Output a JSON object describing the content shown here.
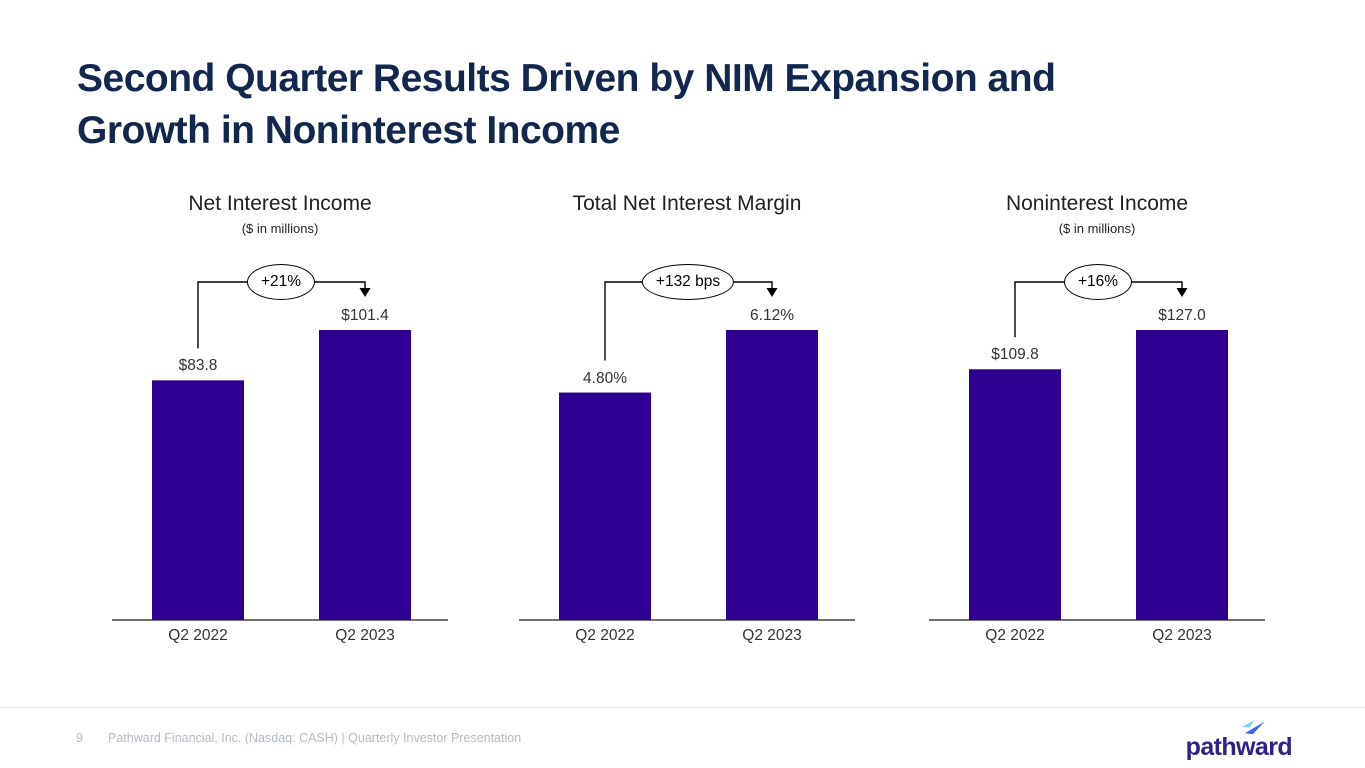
{
  "slide": {
    "title_lines": [
      "Second Quarter Results Driven by NIM Expansion and",
      "Growth in Noninterest Income"
    ]
  },
  "chart_data": [
    {
      "type": "bar",
      "title": "Net Interest Income",
      "subtitle": "($ in millions)",
      "categories": [
        "Q2 2022",
        "Q2 2023"
      ],
      "values": [
        83.8,
        101.4
      ],
      "value_labels": [
        "$83.8",
        "$101.4"
      ],
      "change_badge": "+21%",
      "ylim": [
        0,
        101.4
      ],
      "grid": "off",
      "legend": "none"
    },
    {
      "type": "bar",
      "title": "Total Net Interest Margin",
      "subtitle": "",
      "categories": [
        "Q2 2022",
        "Q2 2023"
      ],
      "values": [
        4.8,
        6.12
      ],
      "value_labels": [
        "4.80%",
        "6.12%"
      ],
      "change_badge": "+132 bps",
      "ylim": [
        0,
        6.12
      ],
      "grid": "off",
      "legend": "none"
    },
    {
      "type": "bar",
      "title": "Noninterest Income",
      "subtitle": "($ in millions)",
      "categories": [
        "Q2 2022",
        "Q2 2023"
      ],
      "values": [
        109.8,
        127.0
      ],
      "value_labels": [
        "$109.8",
        "$127.0"
      ],
      "change_badge": "+16%",
      "ylim": [
        0,
        127.0
      ],
      "grid": "off",
      "legend": "none"
    }
  ],
  "footer": {
    "page_number": "9",
    "text": "Pathward Financial, Inc. (Nasdaq: CASH) | Quarterly Investor Presentation",
    "logo_text": "pathward"
  },
  "colors": {
    "bar": "#2F0191",
    "title": "#13264D",
    "footer_text": "#b5bbc3",
    "logo_text": "#2F2385",
    "logo_arrow_light": "#7EC9F1",
    "logo_arrow_dark": "#2F6BF5"
  }
}
